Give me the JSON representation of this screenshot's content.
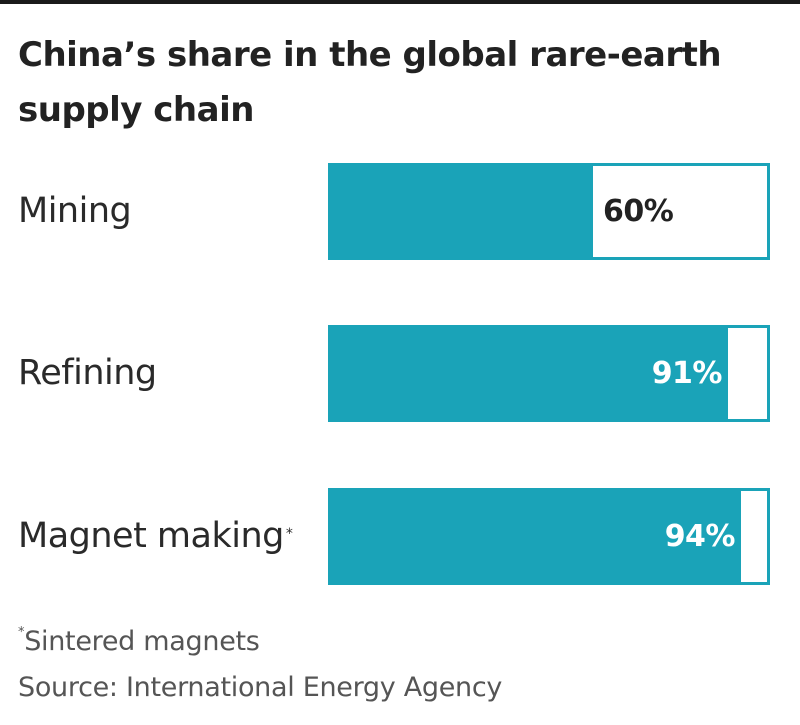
{
  "title": "China’s share in the global rare-earth supply chain",
  "chart_data": {
    "type": "bar",
    "orientation": "horizontal",
    "title": "China’s share in the global rare-earth supply chain",
    "categories": [
      "Mining",
      "Refining",
      "Magnet making"
    ],
    "values": [
      60,
      91,
      94
    ],
    "value_labels": [
      "60%",
      "91%",
      "94%"
    ],
    "unit": "%",
    "xlim": [
      0,
      100
    ],
    "grid": false,
    "legend": "none",
    "footnote_marker": "*",
    "footnote": "Sintered magnets",
    "source": "Source: International Energy Agency"
  },
  "colors": {
    "bar": "#1aa3b8",
    "bar_remainder": "#ffffff",
    "label_on_bar": "#ffffff",
    "label_off_bar": "#222222"
  }
}
